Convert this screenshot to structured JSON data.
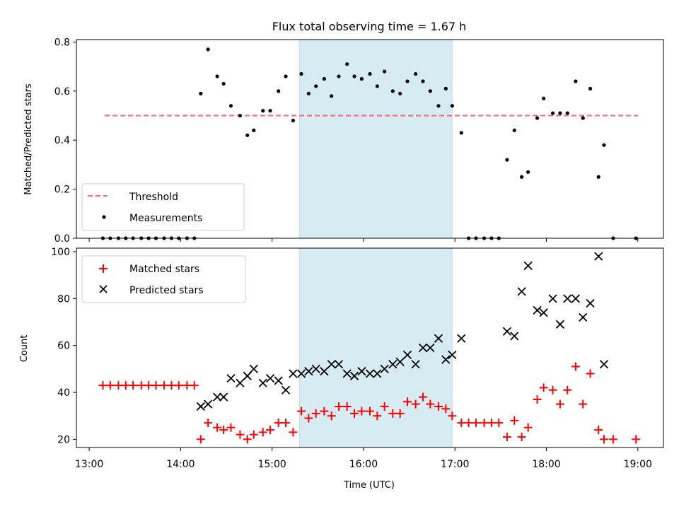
{
  "chart_data": {
    "type": "scatter",
    "title": "Flux total observing time = 1.67 h",
    "xlabel": "Time (UTC)",
    "x_unit": "hours UTC",
    "x_ticks": [
      13,
      14,
      15,
      16,
      17,
      18,
      19
    ],
    "x_tick_labels": [
      "13:00",
      "14:00",
      "15:00",
      "16:00",
      "17:00",
      "18:00",
      "19:00"
    ],
    "xlim": [
      12.86,
      19.28
    ],
    "shaded_interval": {
      "start": 15.3,
      "end": 16.97,
      "color": "#add8e6"
    },
    "panels": [
      {
        "ylabel": "Matched/Predicted stars",
        "ylim": [
          0,
          0.81
        ],
        "y_ticks": [
          0,
          0.2,
          0.4,
          0.6,
          0.8
        ],
        "y_tick_labels": [
          "0.0",
          "0.2",
          "0.4",
          "0.6",
          "0.8"
        ],
        "legend": {
          "position": "lower left",
          "entries": [
            "Threshold",
            "Measurements"
          ]
        },
        "series": [
          {
            "name": "Threshold",
            "kind": "dashed-line",
            "color": "#ff6666",
            "x": [
              13.17,
              19.0
            ],
            "y": [
              0.5,
              0.5
            ]
          },
          {
            "name": "Measurements",
            "kind": "dot",
            "color": "#000000",
            "x": [
              13.15,
              13.23,
              13.32,
              13.4,
              13.48,
              13.57,
              13.65,
              13.73,
              13.82,
              13.9,
              13.98,
              14.07,
              14.15,
              14.22,
              14.3,
              14.4,
              14.47,
              14.55,
              14.65,
              14.73,
              14.8,
              14.9,
              14.98,
              15.07,
              15.15,
              15.23,
              15.32,
              15.4,
              15.48,
              15.57,
              15.65,
              15.73,
              15.82,
              15.9,
              15.98,
              16.07,
              16.15,
              16.23,
              16.32,
              16.4,
              16.48,
              16.57,
              16.65,
              16.73,
              16.82,
              16.9,
              16.97,
              17.07,
              17.15,
              17.23,
              17.32,
              17.4,
              17.48,
              17.57,
              17.65,
              17.73,
              17.8,
              17.9,
              17.97,
              18.07,
              18.15,
              18.23,
              18.32,
              18.4,
              18.48,
              18.57,
              18.63,
              18.73,
              18.98
            ],
            "y": [
              0,
              0,
              0,
              0,
              0,
              0,
              0,
              0,
              0,
              0,
              0,
              0,
              0,
              0.59,
              0.77,
              0.66,
              0.63,
              0.54,
              0.5,
              0.42,
              0.44,
              0.52,
              0.52,
              0.6,
              0.66,
              0.48,
              0.67,
              0.59,
              0.62,
              0.65,
              0.58,
              0.66,
              0.71,
              0.66,
              0.65,
              0.67,
              0.62,
              0.68,
              0.6,
              0.59,
              0.64,
              0.67,
              0.64,
              0.6,
              0.54,
              0.61,
              0.54,
              0.43,
              0,
              0,
              0,
              0,
              0,
              0.32,
              0.44,
              0.25,
              0.27,
              0.49,
              0.57,
              0.51,
              0.51,
              0.51,
              0.64,
              0.49,
              0.61,
              0.25,
              0.38,
              0,
              0
            ]
          }
        ]
      },
      {
        "ylabel": "Count",
        "ylim": [
          16.5,
          101.5
        ],
        "y_ticks": [
          20,
          40,
          60,
          80,
          100
        ],
        "y_tick_labels": [
          "20",
          "40",
          "60",
          "80",
          "100"
        ],
        "legend": {
          "position": "upper left",
          "entries": [
            "Matched stars",
            "Predicted stars"
          ]
        },
        "series": [
          {
            "name": "Matched stars",
            "kind": "plus",
            "color": "#ff0000",
            "x": [
              13.15,
              13.23,
              13.32,
              13.4,
              13.48,
              13.57,
              13.65,
              13.73,
              13.82,
              13.9,
              13.98,
              14.07,
              14.15,
              14.22,
              14.3,
              14.4,
              14.47,
              14.55,
              14.65,
              14.73,
              14.8,
              14.9,
              14.98,
              15.07,
              15.15,
              15.23,
              15.32,
              15.4,
              15.48,
              15.57,
              15.65,
              15.73,
              15.82,
              15.9,
              15.98,
              16.07,
              16.15,
              16.23,
              16.32,
              16.4,
              16.48,
              16.57,
              16.65,
              16.73,
              16.82,
              16.9,
              16.97,
              17.07,
              17.15,
              17.23,
              17.32,
              17.4,
              17.48,
              17.57,
              17.65,
              17.73,
              17.8,
              17.9,
              17.97,
              18.07,
              18.15,
              18.23,
              18.32,
              18.4,
              18.48,
              18.57,
              18.63,
              18.73,
              18.98
            ],
            "y": [
              43,
              43,
              43,
              43,
              43,
              43,
              43,
              43,
              43,
              43,
              43,
              43,
              43,
              20,
              27,
              25,
              24,
              25,
              22,
              20,
              22,
              23,
              24,
              27,
              27,
              23,
              32,
              29,
              31,
              32,
              30,
              34,
              34,
              31,
              32,
              32,
              30,
              34,
              31,
              31,
              36,
              35,
              38,
              35,
              34,
              33,
              30,
              27,
              27,
              27,
              27,
              27,
              27,
              21,
              28,
              21,
              25,
              37,
              42,
              41,
              35,
              41,
              51,
              35,
              48,
              24,
              20,
              20,
              20
            ]
          },
          {
            "name": "Predicted stars",
            "kind": "cross",
            "color": "#000000",
            "x": [
              14.22,
              14.3,
              14.4,
              14.47,
              14.55,
              14.65,
              14.73,
              14.8,
              14.9,
              14.98,
              15.07,
              15.15,
              15.23,
              15.32,
              15.4,
              15.48,
              15.57,
              15.65,
              15.73,
              15.82,
              15.9,
              15.98,
              16.07,
              16.15,
              16.23,
              16.32,
              16.4,
              16.48,
              16.57,
              16.65,
              16.73,
              16.82,
              16.9,
              16.97,
              17.07,
              17.57,
              17.65,
              17.73,
              17.8,
              17.9,
              17.97,
              18.07,
              18.15,
              18.23,
              18.32,
              18.4,
              18.48,
              18.57,
              18.63
            ],
            "y": [
              34,
              35,
              38,
              38,
              46,
              44,
              47,
              50,
              44,
              46,
              45,
              41,
              48,
              48,
              49,
              50,
              49,
              52,
              52,
              48,
              47,
              49,
              48,
              48,
              50,
              52,
              53,
              56,
              52,
              59,
              59,
              63,
              54,
              56,
              63,
              66,
              64,
              83,
              94,
              75,
              74,
              80,
              69,
              80,
              80,
              72,
              78,
              98,
              52
            ]
          }
        ]
      }
    ]
  }
}
